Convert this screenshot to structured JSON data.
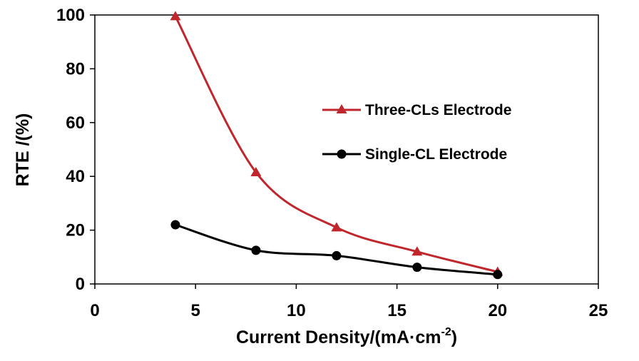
{
  "chart_data": {
    "type": "line",
    "title": "",
    "xlabel": "Current Density/(mA·cm",
    "xlabel_sup": "-2",
    "xlabel_close": ")",
    "ylabel": "RTE /(%)",
    "xlim": [
      0,
      25
    ],
    "ylim": [
      0,
      100
    ],
    "xticks": [
      0,
      5,
      10,
      15,
      20,
      25
    ],
    "yticks": [
      0,
      20,
      40,
      60,
      80,
      100
    ],
    "grid": false,
    "legend_position": "right",
    "series": [
      {
        "name": "Three-CLs Electrode",
        "color": "#c0272d",
        "marker": "triangle",
        "x": [
          4,
          8,
          12,
          16,
          20
        ],
        "y": [
          99.5,
          41.5,
          21,
          12,
          4.5
        ]
      },
      {
        "name": "Single-CL Electrode",
        "color": "#000000",
        "marker": "circle",
        "x": [
          4,
          8,
          12,
          16,
          20
        ],
        "y": [
          22,
          12.5,
          10.5,
          6.2,
          3.5
        ]
      }
    ]
  }
}
